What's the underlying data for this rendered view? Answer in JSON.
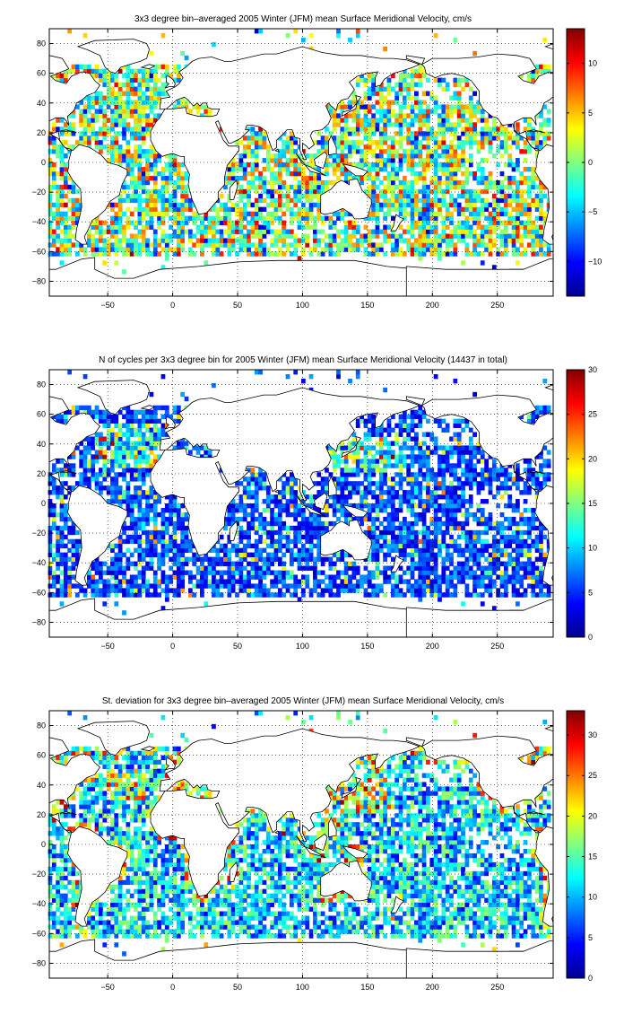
{
  "panels": [
    {
      "title": "3x3 degree bin–averaged 2005 Winter (JFM) mean Surface Meridional Velocity, cm/s",
      "colorbar_ticks": [
        "10",
        "5",
        "0",
        "−5",
        "−10"
      ],
      "colorbar_tick_values": [
        10,
        5,
        0,
        -5,
        -10
      ],
      "colorbar_range": [
        -13.5,
        13.5
      ],
      "colormap": "jet",
      "field": "mean"
    },
    {
      "title": "N of cycles per 3x3 degree bin for 2005 Winter (JFM) mean Surface Meridional Velocity (14437 in total)",
      "colorbar_ticks": [
        "30",
        "25",
        "20",
        "15",
        "10",
        "5",
        "0"
      ],
      "colorbar_tick_values": [
        30,
        25,
        20,
        15,
        10,
        5,
        0
      ],
      "colorbar_range": [
        0,
        30
      ],
      "colormap": "jet",
      "field": "count"
    },
    {
      "title": "St. deviation for 3x3 degree bin–averaged 2005 Winter (JFM) mean Surface Meridional Velocity, cm/s",
      "colorbar_ticks": [
        "30",
        "25",
        "20",
        "15",
        "10",
        "5",
        "0"
      ],
      "colorbar_tick_values": [
        30,
        25,
        20,
        15,
        10,
        5,
        0
      ],
      "colorbar_range": [
        0,
        33
      ],
      "colormap": "jet",
      "field": "std"
    }
  ],
  "axes": {
    "x_ticks": [
      "−50",
      "0",
      "50",
      "100",
      "150",
      "200",
      "250"
    ],
    "x_tick_values": [
      -50,
      0,
      50,
      100,
      150,
      200,
      250
    ],
    "y_ticks": [
      "80",
      "60",
      "40",
      "20",
      "0",
      "−20",
      "−40",
      "−60",
      "−80"
    ],
    "y_tick_values": [
      80,
      60,
      40,
      20,
      0,
      -20,
      -40,
      -60,
      -80
    ],
    "xlim": [
      -95,
      293
    ],
    "ylim": [
      -90,
      90
    ],
    "grid": "dotted"
  },
  "chart_data": [
    {
      "type": "heatmap",
      "title": "3x3 degree bin–averaged 2005 Winter (JFM) mean Surface Meridional Velocity, cm/s",
      "bin_size_deg": 3,
      "x_ticks": [
        -50,
        0,
        50,
        100,
        150,
        200,
        250
      ],
      "y_ticks": [
        80,
        60,
        40,
        20,
        0,
        -20,
        -40,
        -60,
        -80
      ],
      "xlim": [
        -95,
        293
      ],
      "ylim": [
        -90,
        90
      ],
      "color_range": [
        -13.5,
        13.5
      ],
      "colorbar_ticks": [
        10,
        5,
        0,
        -5,
        -10
      ],
      "grid": true
    },
    {
      "type": "heatmap",
      "title": "N of cycles per 3x3 degree bin for 2005 Winter (JFM) mean Surface Meridional Velocity (14437 in total)",
      "bin_size_deg": 3,
      "total_cycles": 14437,
      "x_ticks": [
        -50,
        0,
        50,
        100,
        150,
        200,
        250
      ],
      "y_ticks": [
        80,
        60,
        40,
        20,
        0,
        -20,
        -40,
        -60,
        -80
      ],
      "xlim": [
        -95,
        293
      ],
      "ylim": [
        -90,
        90
      ],
      "color_range": [
        0,
        30
      ],
      "colorbar_ticks": [
        30,
        25,
        20,
        15,
        10,
        5,
        0
      ],
      "grid": true
    },
    {
      "type": "heatmap",
      "title": "St. deviation for 3x3 degree bin–averaged 2005 Winter (JFM) mean Surface Meridional Velocity, cm/s",
      "bin_size_deg": 3,
      "x_ticks": [
        -50,
        0,
        50,
        100,
        150,
        200,
        250
      ],
      "y_ticks": [
        80,
        60,
        40,
        20,
        0,
        -20,
        -40,
        -60,
        -80
      ],
      "xlim": [
        -95,
        293
      ],
      "ylim": [
        -90,
        90
      ],
      "color_range": [
        0,
        33
      ],
      "colorbar_ticks": [
        30,
        25,
        20,
        15,
        10,
        5,
        0
      ],
      "grid": true
    }
  ]
}
